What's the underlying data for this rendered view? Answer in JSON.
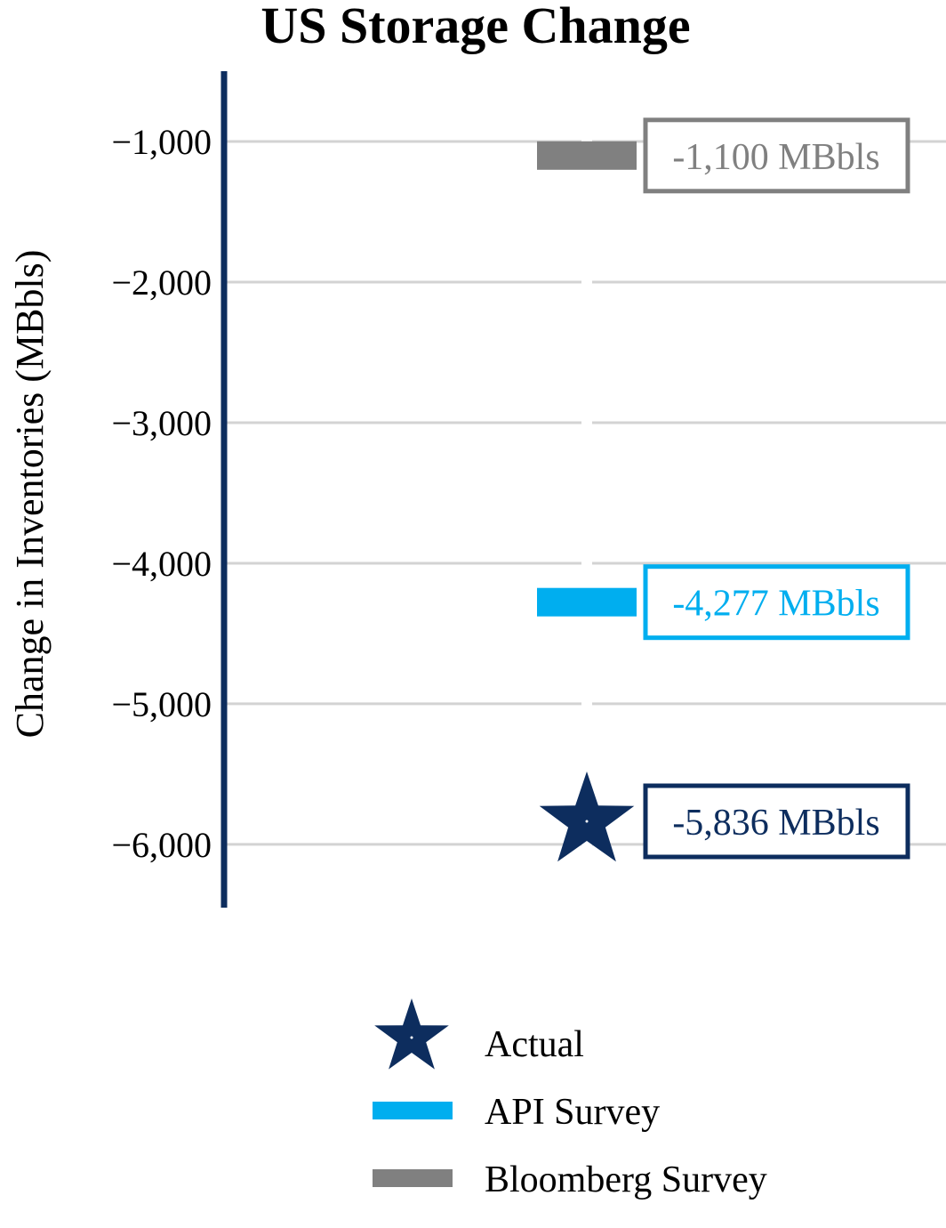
{
  "chart_data": {
    "type": "scatter",
    "title": "US Storage Change",
    "ylabel": "Change in Inventories (MBbls)",
    "xlabel": "",
    "ylim": [
      -6450,
      -500
    ],
    "yticks": [
      -1000,
      -2000,
      -3000,
      -4000,
      -5000,
      -6000
    ],
    "ytick_labels": [
      "−1,000",
      "−2,000",
      "−3,000",
      "−4,000",
      "−5,000",
      "−6,000"
    ],
    "grid": true,
    "legend_position": "bottom",
    "series": [
      {
        "name": "Actual",
        "marker": "star",
        "color": "#0d2d5e",
        "value": -5836,
        "label": "-5,836 MBbls"
      },
      {
        "name": "API Survey",
        "marker": "bar",
        "color": "#00aeef",
        "value": -4277,
        "label": "-4,277 MBbls"
      },
      {
        "name": "Bloomberg Survey",
        "marker": "bar",
        "color": "#808080",
        "value": -1100,
        "label": "-1,100 MBbls"
      }
    ],
    "axis_color": "#0d2d5e",
    "grid_color": "#d3d3d3"
  }
}
